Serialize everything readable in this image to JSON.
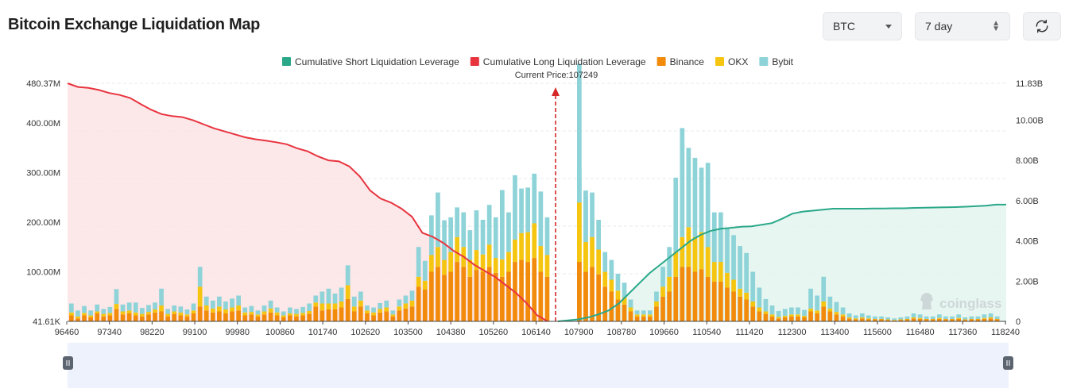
{
  "header": {
    "title": "Bitcoin Exchange Liquidation Map",
    "coin_select": "BTC",
    "range_select": "7 day"
  },
  "colors": {
    "short": "#2aa889",
    "long": "#e8343f",
    "binance": "#f28a0c",
    "okx": "#f5c50f",
    "bybit": "#8dd3d8",
    "short_fill": "#e3f4ef",
    "long_fill": "#fbe3e5"
  },
  "watermark": "coinglass",
  "chart_data": {
    "type": "bar",
    "current_price_label": "Current Price:107249",
    "current_price": 107249,
    "legend": [
      {
        "name": "Cumulative Short Liquidation Leverage",
        "color": "#2aa889"
      },
      {
        "name": "Cumulative Long Liquidation Leverage",
        "color": "#e8343f"
      },
      {
        "name": "Binance",
        "color": "#f28a0c"
      },
      {
        "name": "OKX",
        "color": "#f5c50f"
      },
      {
        "name": "Bybit",
        "color": "#8dd3d8"
      }
    ],
    "x_ticks": [
      "96460",
      "97340",
      "98220",
      "99100",
      "99980",
      "100860",
      "101740",
      "102620",
      "103500",
      "104380",
      "105260",
      "106140",
      "107900",
      "108780",
      "109660",
      "110540",
      "111420",
      "112300",
      "113400",
      "115600",
      "116480",
      "117360",
      "118240"
    ],
    "y_left_ticks": [
      "41.61K",
      "100.00M",
      "200.00M",
      "300.00M",
      "400.00M",
      "480.37M"
    ],
    "y_left_range": [
      0,
      480.37
    ],
    "y_right_ticks": [
      "0",
      "2.00B",
      "4.00B",
      "6.00B",
      "8.00B",
      "10.00B",
      "11.83B"
    ],
    "y_right_range": [
      0,
      11.83
    ],
    "bars_unit": "M",
    "bars": {
      "binance": [
        12,
        6,
        12,
        8,
        16,
        10,
        12,
        25,
        14,
        16,
        12,
        10,
        14,
        18,
        20,
        10,
        15,
        12,
        10,
        16,
        30,
        22,
        18,
        20,
        16,
        20,
        22,
        12,
        14,
        10,
        14,
        18,
        12,
        8,
        12,
        10,
        12,
        15,
        30,
        22,
        24,
        24,
        28,
        45,
        20,
        30,
        16,
        12,
        18,
        20,
        10,
        22,
        26,
        30,
        70,
        64,
        100,
        110,
        94,
        100,
        120,
        110,
        90,
        104,
        100,
        110,
        98,
        90,
        100,
        120,
        124,
        120,
        128,
        100,
        90,
        120,
        110,
        120,
        100,
        110,
        95,
        70,
        60,
        44,
        34,
        20,
        10,
        10,
        10,
        30,
        50,
        60,
        90,
        110,
        110,
        100,
        105,
        90,
        80,
        80,
        68,
        60,
        50,
        44,
        30,
        20,
        15,
        10,
        6,
        8,
        10,
        10,
        8,
        20,
        16,
        30,
        20,
        14,
        10,
        6,
        4,
        6,
        4,
        4,
        4,
        3,
        2,
        3,
        4,
        6,
        5,
        4,
        4,
        5,
        4,
        4,
        5,
        3,
        4,
        4,
        5,
        6,
        4
      ],
      "okx": [
        6,
        4,
        5,
        4,
        4,
        5,
        5,
        10,
        6,
        6,
        6,
        5,
        5,
        6,
        12,
        5,
        5,
        6,
        4,
        6,
        40,
        10,
        8,
        10,
        8,
        8,
        10,
        6,
        5,
        4,
        6,
        8,
        6,
        4,
        4,
        5,
        5,
        6,
        8,
        14,
        12,
        12,
        12,
        28,
        10,
        12,
        6,
        6,
        7,
        8,
        4,
        8,
        10,
        12,
        20,
        18,
        34,
        40,
        30,
        40,
        50,
        40,
        34,
        40,
        35,
        45,
        30,
        35,
        40,
        45,
        54,
        60,
        70,
        52,
        44,
        70,
        64,
        120,
        60,
        60,
        50,
        30,
        24,
        18,
        14,
        8,
        4,
        4,
        4,
        10,
        20,
        30,
        50,
        60,
        80,
        70,
        75,
        60,
        40,
        40,
        30,
        24,
        16,
        14,
        10,
        8,
        5,
        4,
        3,
        3,
        4,
        4,
        3,
        6,
        6,
        10,
        6,
        5,
        4,
        2,
        2,
        2,
        2,
        1,
        1,
        1,
        1,
        1,
        1,
        2,
        2,
        1,
        1,
        2,
        1,
        1,
        2,
        1,
        1,
        1,
        2,
        2,
        1
      ],
      "bybit": [
        18,
        12,
        14,
        10,
        14,
        10,
        12,
        30,
        14,
        16,
        20,
        12,
        14,
        14,
        34,
        10,
        12,
        12,
        10,
        14,
        40,
        18,
        16,
        20,
        16,
        18,
        20,
        10,
        12,
        8,
        12,
        16,
        10,
        8,
        12,
        10,
        12,
        15,
        14,
        24,
        30,
        20,
        28,
        40,
        20,
        18,
        10,
        10,
        12,
        14,
        8,
        14,
        16,
        20,
        60,
        40,
        80,
        110,
        80,
        70,
        60,
        70,
        60,
        80,
        70,
        80,
        82,
        140,
        80,
        130,
        90,
        90,
        100,
        110,
        76,
        120,
        90,
        280,
        90,
        90,
        60,
        40,
        40,
        34,
        30,
        16,
        8,
        8,
        8,
        20,
        40,
        60,
        150,
        220,
        160,
        160,
        130,
        170,
        100,
        100,
        90,
        90,
        86,
        80,
        60,
        40,
        25,
        18,
        12,
        14,
        14,
        14,
        12,
        40,
        30,
        50,
        24,
        20,
        14,
        8,
        6,
        8,
        6,
        5,
        5,
        4,
        3,
        4,
        5,
        8,
        7,
        5,
        5,
        7,
        5,
        5,
        7,
        4,
        5,
        5,
        7,
        8,
        5
      ]
    },
    "long_cum_unit": "B",
    "long_cumulative": [
      11.83,
      11.65,
      11.6,
      11.5,
      11.35,
      11.25,
      11.1,
      10.8,
      10.52,
      10.3,
      10.2,
      10.15,
      10.0,
      9.8,
      9.6,
      9.45,
      9.3,
      9.15,
      9.05,
      8.98,
      8.9,
      8.8,
      8.6,
      8.45,
      8.2,
      8.0,
      7.95,
      7.7,
      7.2,
      6.5,
      6.1,
      5.9,
      5.6,
      5.2,
      4.4,
      4.2,
      3.9,
      3.5,
      3.2,
      2.8,
      2.5,
      2.2,
      1.8,
      1.4,
      0.9,
      0.3,
      0.0
    ],
    "short_cum_unit": "B",
    "short_cumulative": [
      0.0,
      0.05,
      0.1,
      0.2,
      0.35,
      0.55,
      0.9,
      1.4,
      1.9,
      2.4,
      2.8,
      3.2,
      3.6,
      4.0,
      4.3,
      4.5,
      4.6,
      4.65,
      4.7,
      4.72,
      4.8,
      4.88,
      5.1,
      5.35,
      5.45,
      5.5,
      5.55,
      5.6,
      5.6,
      5.6,
      5.6,
      5.61,
      5.61,
      5.62,
      5.62,
      5.64,
      5.65,
      5.66,
      5.67,
      5.68,
      5.7,
      5.72,
      5.75,
      5.8,
      5.8
    ]
  }
}
